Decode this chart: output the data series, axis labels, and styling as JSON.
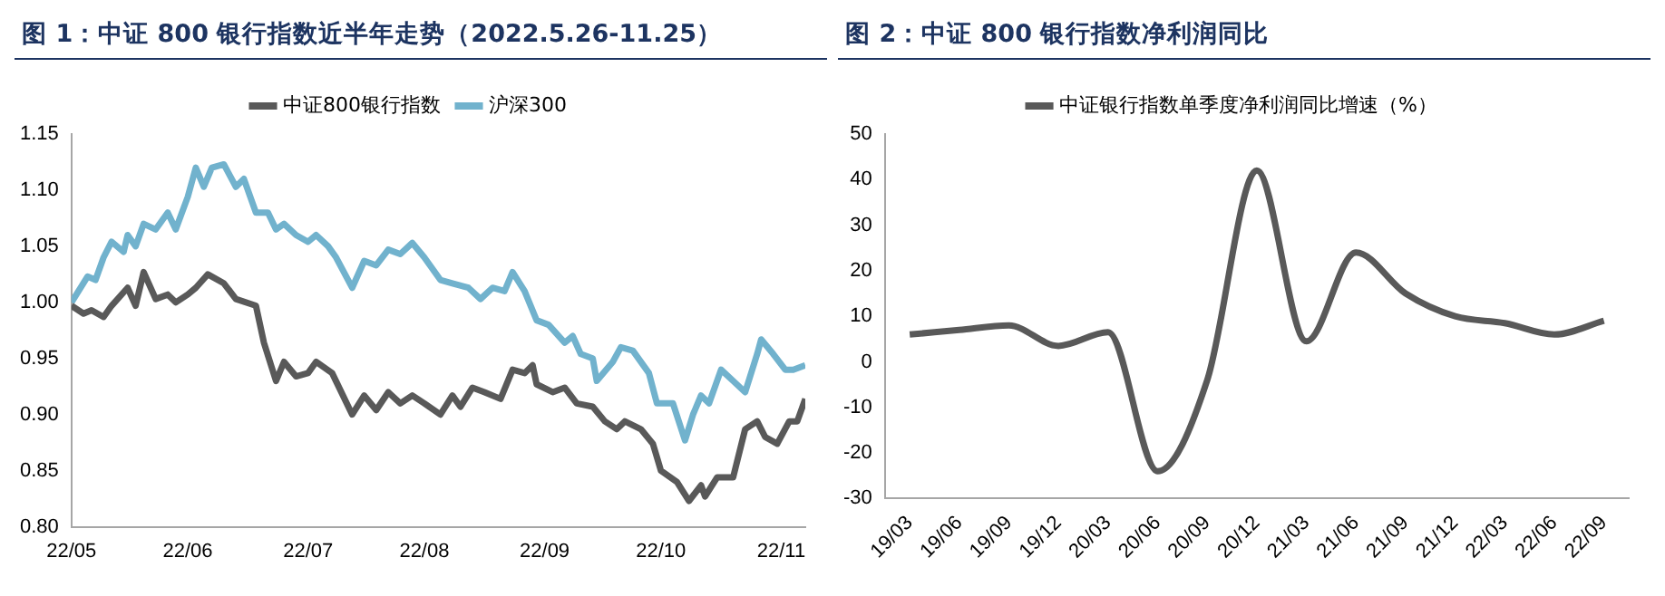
{
  "chart_data": [
    {
      "type": "line",
      "title": "图 1：中证 800 银行指数近半年走势（2022.5.26-11.25）",
      "legend": "top",
      "marker": "none",
      "xlim": [
        "2022-05-26",
        "2022-11-25"
      ],
      "xticks": [
        {
          "value": "2022-05-26",
          "label": "22/05"
        },
        {
          "value": "2022-06-24",
          "label": "22/06"
        },
        {
          "value": "2022-07-24",
          "label": "22/07"
        },
        {
          "value": "2022-08-22",
          "label": "22/08"
        },
        {
          "value": "2022-09-21",
          "label": "22/09"
        },
        {
          "value": "2022-10-20",
          "label": "22/10"
        },
        {
          "value": "2022-11-19",
          "label": "22/11"
        }
      ],
      "ylim": [
        0.8,
        1.15
      ],
      "yticks": [
        {
          "value": 0.8,
          "label": "0.80"
        },
        {
          "value": 0.85,
          "label": "0.85"
        },
        {
          "value": 0.9,
          "label": "0.90"
        },
        {
          "value": 0.95,
          "label": "0.95"
        },
        {
          "value": 1,
          "label": "1.00"
        },
        {
          "value": 1.05,
          "label": "1.05"
        },
        {
          "value": 1.1,
          "label": "1.10"
        },
        {
          "value": 1.15,
          "label": "1.15"
        }
      ],
      "series": [
        {
          "name": "中证800银行指数",
          "color": "#595959",
          "x": [
            "2022-05-26",
            "2022-05-29",
            "2022-05-31",
            "2022-06-03",
            "2022-06-05",
            "2022-06-09",
            "2022-06-11",
            "2022-06-13",
            "2022-06-16",
            "2022-06-19",
            "2022-06-21",
            "2022-06-24",
            "2022-06-26",
            "2022-06-29",
            "2022-07-03",
            "2022-07-06",
            "2022-07-11",
            "2022-07-13",
            "2022-07-16",
            "2022-07-18",
            "2022-07-21",
            "2022-07-24",
            "2022-07-26",
            "2022-07-30",
            "2022-08-04",
            "2022-08-07",
            "2022-08-10",
            "2022-08-13",
            "2022-08-16",
            "2022-08-19",
            "2022-08-22",
            "2022-08-26",
            "2022-08-29",
            "2022-08-31",
            "2022-09-03",
            "2022-09-06",
            "2022-09-10",
            "2022-09-13",
            "2022-09-16",
            "2022-09-18",
            "2022-09-19",
            "2022-09-23",
            "2022-09-26",
            "2022-09-29",
            "2022-10-03",
            "2022-10-06",
            "2022-10-09",
            "2022-10-11",
            "2022-10-15",
            "2022-10-18",
            "2022-10-20",
            "2022-10-24",
            "2022-10-27",
            "2022-10-30",
            "2022-10-31",
            "2022-11-03",
            "2022-11-07",
            "2022-11-10",
            "2022-11-13",
            "2022-11-15",
            "2022-11-18",
            "2022-11-21",
            "2022-11-23",
            "2022-11-25"
          ],
          "values": [
            0.997,
            0.99,
            0.993,
            0.987,
            0.997,
            1.013,
            0.997,
            1.027,
            1.003,
            1.007,
            1.0,
            1.007,
            1.013,
            1.025,
            1.017,
            1.003,
            0.997,
            0.964,
            0.93,
            0.947,
            0.934,
            0.937,
            0.947,
            0.937,
            0.9,
            0.917,
            0.904,
            0.92,
            0.91,
            0.917,
            0.91,
            0.9,
            0.917,
            0.907,
            0.924,
            0.92,
            0.914,
            0.94,
            0.937,
            0.944,
            0.927,
            0.92,
            0.924,
            0.91,
            0.907,
            0.894,
            0.887,
            0.894,
            0.887,
            0.874,
            0.85,
            0.84,
            0.823,
            0.837,
            0.827,
            0.844,
            0.844,
            0.887,
            0.894,
            0.88,
            0.874,
            0.894,
            0.894,
            0.914
          ]
        },
        {
          "name": "沪深300",
          "color": "#71b2cd",
          "x": [
            "2022-05-26",
            "2022-05-30",
            "2022-06-01",
            "2022-06-03",
            "2022-06-05",
            "2022-06-08",
            "2022-06-09",
            "2022-06-11",
            "2022-06-13",
            "2022-06-16",
            "2022-06-19",
            "2022-06-21",
            "2022-06-24",
            "2022-06-26",
            "2022-06-28",
            "2022-06-30",
            "2022-07-03",
            "2022-07-06",
            "2022-07-08",
            "2022-07-11",
            "2022-07-14",
            "2022-07-16",
            "2022-07-18",
            "2022-07-21",
            "2022-07-24",
            "2022-07-26",
            "2022-07-29",
            "2022-07-31",
            "2022-08-04",
            "2022-08-07",
            "2022-08-10",
            "2022-08-13",
            "2022-08-16",
            "2022-08-19",
            "2022-08-22",
            "2022-08-26",
            "2022-08-29",
            "2022-09-02",
            "2022-09-05",
            "2022-09-08",
            "2022-09-11",
            "2022-09-13",
            "2022-09-16",
            "2022-09-19",
            "2022-09-22",
            "2022-09-26",
            "2022-09-28",
            "2022-09-30",
            "2022-10-03",
            "2022-10-04",
            "2022-10-08",
            "2022-10-10",
            "2022-10-13",
            "2022-10-17",
            "2022-10-19",
            "2022-10-23",
            "2022-10-26",
            "2022-10-28",
            "2022-10-30",
            "2022-11-01",
            "2022-11-04",
            "2022-11-07",
            "2022-11-10",
            "2022-11-13",
            "2022-11-14",
            "2022-11-17",
            "2022-11-20",
            "2022-11-22",
            "2022-11-25"
          ],
          "values": [
            1.0,
            1.023,
            1.02,
            1.04,
            1.054,
            1.045,
            1.06,
            1.05,
            1.07,
            1.065,
            1.08,
            1.065,
            1.094,
            1.12,
            1.103,
            1.12,
            1.123,
            1.103,
            1.11,
            1.08,
            1.08,
            1.065,
            1.07,
            1.06,
            1.054,
            1.06,
            1.05,
            1.04,
            1.013,
            1.037,
            1.033,
            1.047,
            1.043,
            1.053,
            1.04,
            1.02,
            1.017,
            1.013,
            1.003,
            1.013,
            1.01,
            1.027,
            1.01,
            0.984,
            0.98,
            0.964,
            0.97,
            0.954,
            0.95,
            0.93,
            0.947,
            0.96,
            0.957,
            0.937,
            0.91,
            0.91,
            0.877,
            0.9,
            0.917,
            0.91,
            0.94,
            0.93,
            0.92,
            0.954,
            0.967,
            0.954,
            0.94,
            0.94,
            0.944
          ]
        }
      ]
    },
    {
      "type": "line",
      "title": "图 2：中证 800 银行指数净利润同比",
      "legend": "top",
      "marker": "none",
      "categories": [
        "19/03",
        "19/06",
        "19/09",
        "19/12",
        "20/03",
        "20/06",
        "20/09",
        "20/12",
        "21/03",
        "21/06",
        "21/09",
        "21/12",
        "22/03",
        "22/06",
        "22/09"
      ],
      "ylim": [
        -30,
        50
      ],
      "yticks": [
        -30,
        -20,
        -10,
        0,
        10,
        20,
        30,
        40,
        50
      ],
      "series": [
        {
          "name": "中证银行指数单季度净利润同比增速（%）",
          "color": "#595959",
          "values": [
            6,
            7,
            8,
            3.5,
            6.5,
            -24,
            -4,
            42,
            4.5,
            24,
            15,
            10,
            8.5,
            6,
            9
          ]
        }
      ]
    }
  ]
}
